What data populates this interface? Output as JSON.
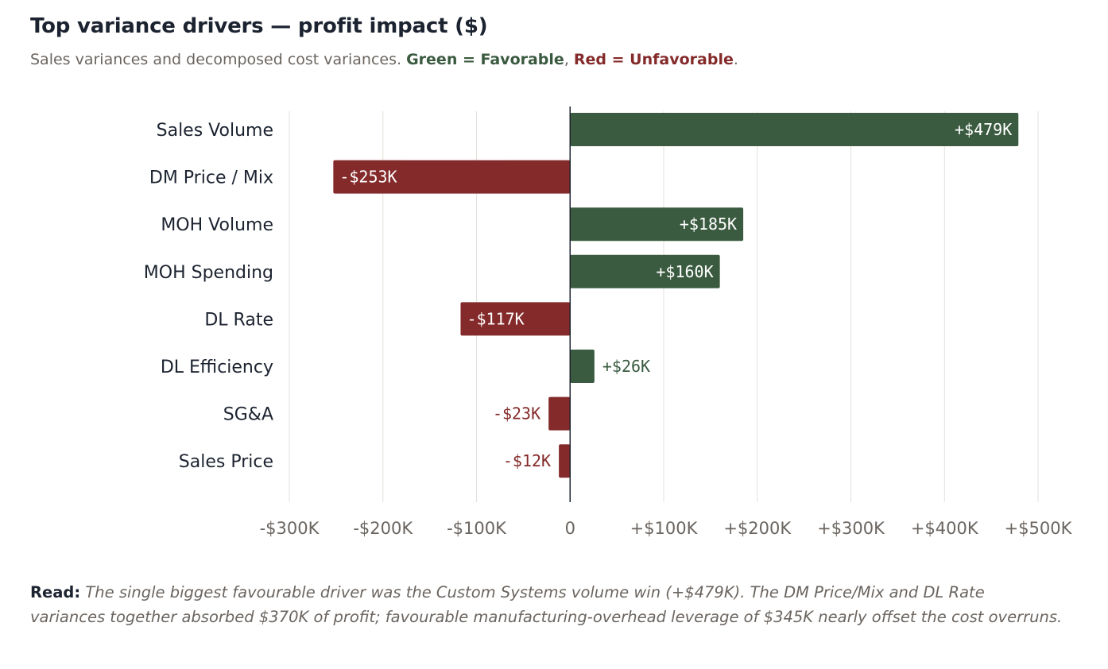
{
  "header": {
    "title": "Top variance drivers — profit impact ($)",
    "subtitle_prefix": "Sales variances and decomposed cost variances.",
    "favorable_legend": "Green = Favorable",
    "separator": ",",
    "unfavorable_legend": "Red = Unfavorable",
    "suffix": "."
  },
  "colors": {
    "favorable": "#3b5b41",
    "unfavorable": "#842a2a",
    "grid": "#e3e0dc",
    "axis_text": "#6b6560",
    "category_text": "#1c2330",
    "zero_line": "#1c2330"
  },
  "chart_data": {
    "type": "bar",
    "orientation": "horizontal",
    "title": "Top variance drivers — profit impact ($)",
    "categories": [
      "Sales Volume",
      "DM Price / Mix",
      "MOH Volume",
      "MOH Spending",
      "DL Rate",
      "DL Efficiency",
      "SG&A",
      "Sales Price"
    ],
    "values": [
      479,
      -253,
      185,
      160,
      -117,
      26,
      -23,
      -12
    ],
    "value_units": "$K",
    "data_labels": [
      "+$479K",
      "-$253K",
      "+$185K",
      "+$160K",
      "-$117K",
      "+$26K",
      "-$23K",
      "-$12K"
    ],
    "xlim": [
      -300,
      500
    ],
    "xticks": [
      -300,
      -200,
      -100,
      0,
      100,
      200,
      300,
      400,
      500
    ],
    "xtick_labels": [
      "-$300K",
      "-$200K",
      "-$100K",
      "0",
      "+$100K",
      "+$200K",
      "+$300K",
      "+$400K",
      "+$500K"
    ],
    "xlabel": "",
    "ylabel": "",
    "grid": true
  },
  "read": {
    "label": "Read:",
    "text": "The single biggest favourable driver was the Custom Systems volume win (+$479K). The DM Price/Mix and DL Rate variances together absorbed $370K of profit; favourable manufacturing-overhead leverage of $345K nearly offset the cost overruns."
  }
}
